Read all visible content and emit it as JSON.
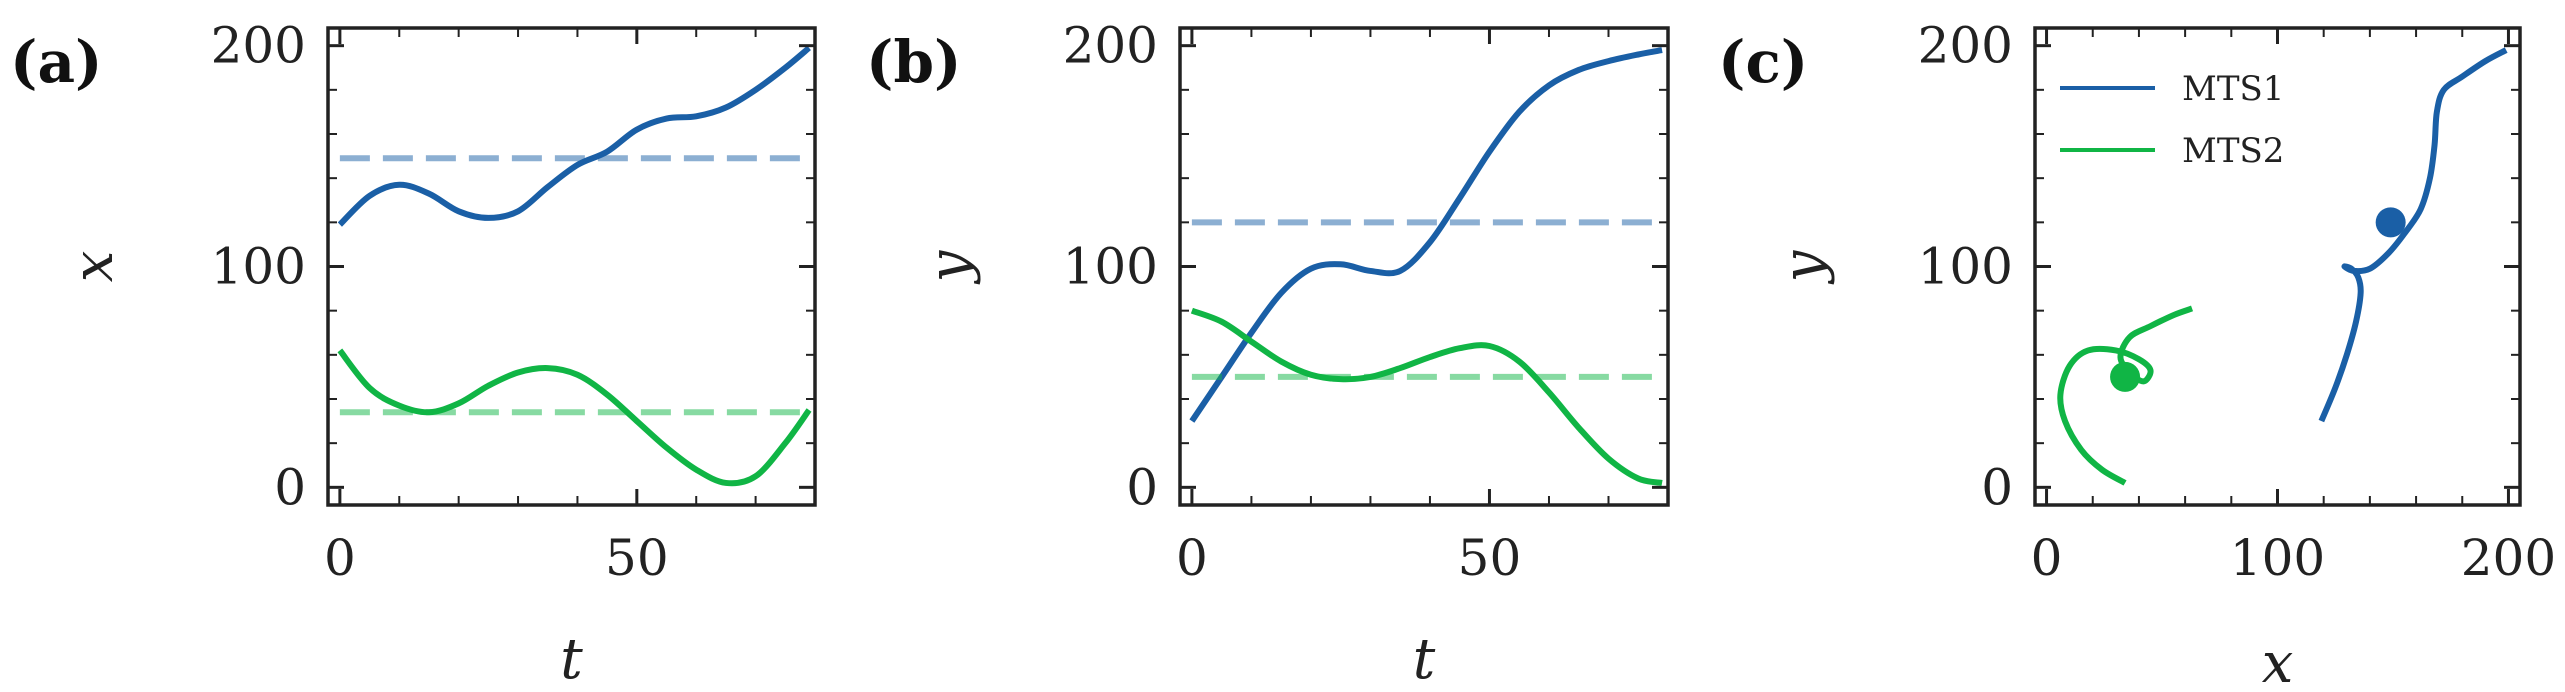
{
  "colors": {
    "mts1": "#1a5fa6",
    "mts2": "#10b545"
  },
  "chart_data": [
    {
      "type": "line",
      "panel": "(a)",
      "xlabel": "t",
      "ylabel": "x",
      "xlim": [
        -2,
        80
      ],
      "ylim": [
        -8,
        208
      ],
      "xticks": [
        0,
        50
      ],
      "yticks": [
        0,
        100,
        200
      ],
      "series": [
        {
          "key": "mts1",
          "style": "solid",
          "x": [
            0,
            5,
            10,
            15,
            20,
            25,
            30,
            35,
            40,
            45,
            50,
            55,
            60,
            65,
            70,
            75,
            79
          ],
          "y": [
            119,
            132,
            137,
            133,
            125,
            122,
            125,
            136,
            146,
            152,
            162,
            167,
            168,
            172,
            180,
            190,
            199
          ]
        },
        {
          "key": "mts1",
          "style": "dashed",
          "alpha": 0.5,
          "x": [
            0,
            79
          ],
          "y": [
            149,
            149
          ]
        },
        {
          "key": "mts2",
          "style": "solid",
          "x": [
            0,
            5,
            10,
            15,
            20,
            25,
            30,
            35,
            40,
            45,
            50,
            55,
            60,
            65,
            70,
            75,
            79
          ],
          "y": [
            62,
            45,
            37,
            34,
            38,
            46,
            52,
            54,
            51,
            42,
            30,
            18,
            8,
            2,
            5,
            20,
            35
          ]
        },
        {
          "key": "mts2",
          "style": "dashed",
          "alpha": 0.5,
          "x": [
            0,
            79
          ],
          "y": [
            34,
            34
          ]
        }
      ]
    },
    {
      "type": "line",
      "panel": "(b)",
      "xlabel": "t",
      "ylabel": "y",
      "xlim": [
        -2,
        80
      ],
      "ylim": [
        -8,
        208
      ],
      "xticks": [
        0,
        50
      ],
      "yticks": [
        0,
        100,
        200
      ],
      "series": [
        {
          "key": "mts1",
          "style": "solid",
          "x": [
            0,
            5,
            10,
            15,
            20,
            25,
            30,
            35,
            40,
            45,
            50,
            55,
            60,
            65,
            70,
            75,
            79
          ],
          "y": [
            30,
            50,
            70,
            88,
            99,
            101,
            98,
            98,
            111,
            131,
            152,
            170,
            182,
            189,
            193,
            196,
            198
          ]
        },
        {
          "key": "mts1",
          "style": "dashed",
          "alpha": 0.5,
          "x": [
            0,
            79
          ],
          "y": [
            120,
            120
          ]
        },
        {
          "key": "mts2",
          "style": "solid",
          "x": [
            0,
            5,
            10,
            15,
            20,
            25,
            30,
            35,
            40,
            45,
            50,
            55,
            60,
            65,
            70,
            75,
            79
          ],
          "y": [
            80,
            75,
            66,
            57,
            51,
            49,
            50,
            54,
            59,
            63,
            64,
            57,
            43,
            27,
            13,
            4,
            2
          ]
        },
        {
          "key": "mts2",
          "style": "dashed",
          "alpha": 0.5,
          "x": [
            0,
            79
          ],
          "y": [
            50,
            50
          ]
        }
      ]
    },
    {
      "type": "line",
      "panel": "(c)",
      "xlabel": "x",
      "ylabel": "y",
      "xlim": [
        -5,
        205
      ],
      "ylim": [
        -8,
        208
      ],
      "xticks": [
        0,
        100,
        200
      ],
      "yticks": [
        0,
        100,
        200
      ],
      "legend": {
        "position": "top-left",
        "entries": [
          {
            "key": "mts1",
            "label": "MTS1"
          },
          {
            "key": "mts2",
            "label": "MTS2"
          }
        ]
      },
      "series": [
        {
          "key": "mts1",
          "name": "MTS1",
          "style": "solid",
          "x": [
            119,
            125,
            130,
            134,
            136,
            135,
            132,
            129,
            133,
            140,
            148,
            155,
            162,
            166,
            168,
            169,
            172,
            180,
            190,
            199
          ],
          "y": [
            30,
            45,
            60,
            75,
            88,
            95,
            99,
            100,
            98,
            99,
            106,
            115,
            126,
            140,
            155,
            170,
            180,
            186,
            193,
            198
          ],
          "marker": {
            "x": 149,
            "y": 120
          }
        },
        {
          "key": "mts2",
          "name": "MTS2",
          "style": "solid",
          "x": [
            34,
            24,
            15,
            8,
            6,
            10,
            18,
            30,
            40,
            45,
            42,
            36,
            32,
            36,
            45,
            55,
            63
          ],
          "y": [
            2,
            8,
            17,
            30,
            42,
            55,
            62,
            62,
            58,
            53,
            48,
            52,
            59,
            68,
            73,
            78,
            81
          ],
          "marker": {
            "x": 34,
            "y": 50
          }
        }
      ]
    }
  ]
}
